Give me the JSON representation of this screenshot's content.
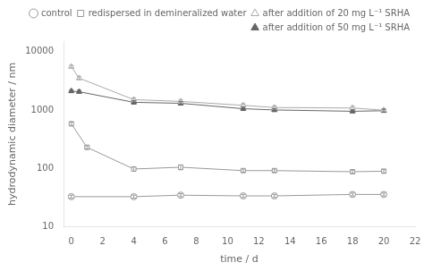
{
  "chart_data": {
    "type": "line",
    "x_label": "time / d",
    "y_label": "hydrodynamic diameter / nm",
    "log": "y",
    "grid": false,
    "legend": "upper right",
    "xlim": [
      -0.5,
      22
    ],
    "xticks": [
      0,
      2,
      4,
      6,
      8,
      10,
      12,
      14,
      16,
      18,
      20,
      22
    ],
    "ylim": [
      10,
      15000
    ],
    "yticks": [
      10,
      100,
      1000,
      10000
    ],
    "series": [
      {
        "name": "control",
        "color": "#999999",
        "marker": "circle-open",
        "line_style": "solid",
        "x": [
          0,
          4,
          7,
          11,
          13,
          18,
          20
        ],
        "values": [
          33,
          33,
          35,
          34,
          34,
          36,
          36
        ],
        "yerr": [
          2,
          2,
          2,
          2,
          2,
          2,
          2
        ]
      },
      {
        "name": "redispersed in demineralized water",
        "color": "#999999",
        "marker": "square-open",
        "line_style": "solid",
        "x": [
          0,
          1,
          4,
          7,
          11,
          13,
          18,
          20
        ],
        "values": [
          580,
          230,
          98,
          105,
          92,
          92,
          88,
          90
        ],
        "yerr": [
          40,
          15,
          8,
          10,
          6,
          6,
          6,
          6
        ]
      },
      {
        "name": "after addition of 20 mg L⁻¹ SRHA",
        "color": "#aaaaaa",
        "marker": "triangle-open",
        "line_style": "solid",
        "x": [
          0,
          0.5,
          4,
          7,
          11,
          13,
          18,
          20
        ],
        "values": [
          5500,
          3500,
          1500,
          1400,
          1200,
          1100,
          1080,
          990
        ],
        "yerr": [
          300,
          200,
          100,
          100,
          80,
          70,
          70,
          60
        ]
      },
      {
        "name": "after addition of 50 mg L⁻¹ SRHA",
        "color": "#666666",
        "marker": "triangle",
        "line_style": "solid",
        "x": [
          0,
          0.5,
          4,
          7,
          11,
          13,
          18,
          20
        ],
        "values": [
          2100,
          2050,
          1350,
          1300,
          1050,
          1000,
          950,
          970
        ],
        "yerr": [
          120,
          120,
          90,
          90,
          70,
          60,
          55,
          60
        ]
      }
    ]
  }
}
